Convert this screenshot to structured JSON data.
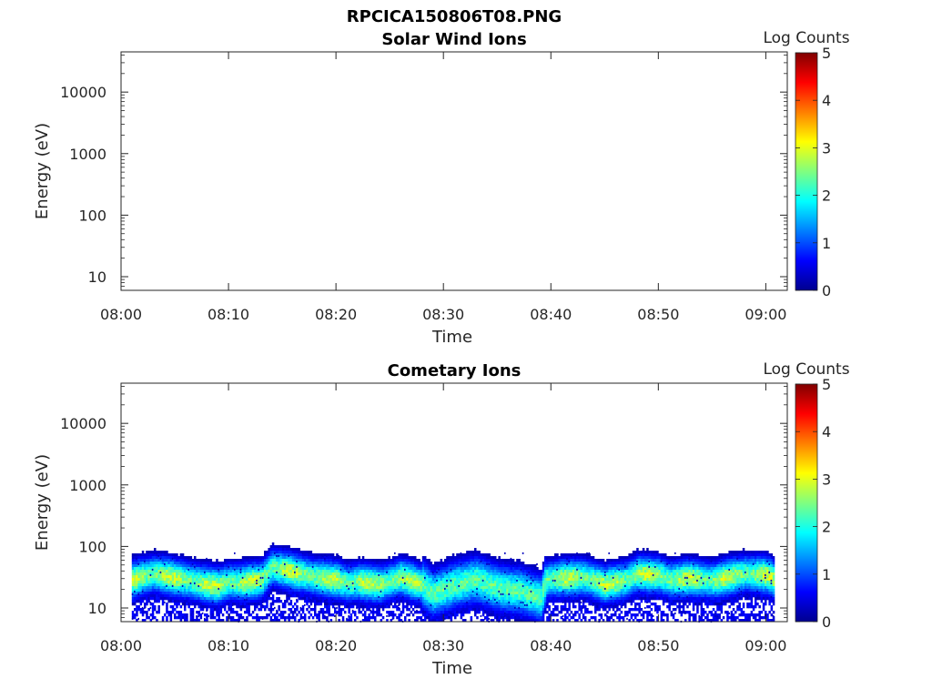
{
  "figure_title": "RPCICA150806T08.PNG",
  "chart_data": [
    {
      "type": "heatmap",
      "title": "Solar Wind Ions",
      "xlabel": "Time",
      "ylabel": "Energy (eV)",
      "x_ticks": [
        "08:00",
        "08:10",
        "08:20",
        "08:30",
        "08:40",
        "08:50",
        "09:00"
      ],
      "y_ticks": [
        "10",
        "100",
        "1000",
        "10000"
      ],
      "y_scale": "log",
      "ylim": [
        6,
        45000
      ],
      "xlim_minutes": [
        0,
        62
      ],
      "colorbar": {
        "label": "Log Counts",
        "ticks": [
          "0",
          "1",
          "2",
          "3",
          "4",
          "5"
        ],
        "range": [
          0,
          5
        ],
        "colormap": "jet"
      },
      "data": "empty"
    },
    {
      "type": "heatmap",
      "title": "Cometary Ions",
      "xlabel": "Time",
      "ylabel": "Energy (eV)",
      "x_ticks": [
        "08:00",
        "08:10",
        "08:20",
        "08:30",
        "08:40",
        "08:50",
        "09:00"
      ],
      "y_ticks": [
        "10",
        "100",
        "1000",
        "10000"
      ],
      "y_scale": "log",
      "ylim": [
        6,
        45000
      ],
      "xlim_minutes": [
        0,
        62
      ],
      "colorbar": {
        "label": "Log Counts",
        "ticks": [
          "0",
          "1",
          "2",
          "3",
          "4",
          "5"
        ],
        "range": [
          0,
          5
        ],
        "colormap": "jet"
      },
      "data_window_minutes": [
        1,
        60.8
      ],
      "sparse_counts_upper_energy_eV": 80,
      "band_center_eV": [
        [
          1,
          30
        ],
        [
          3,
          38
        ],
        [
          5,
          32
        ],
        [
          6,
          30
        ],
        [
          8,
          25
        ],
        [
          9,
          24
        ],
        [
          10,
          28
        ],
        [
          11,
          27
        ],
        [
          13,
          30
        ],
        [
          14,
          48
        ],
        [
          16,
          40
        ],
        [
          18,
          33
        ],
        [
          20,
          30
        ],
        [
          21,
          26
        ],
        [
          22,
          28
        ],
        [
          24,
          25
        ],
        [
          26,
          33
        ],
        [
          28,
          25
        ],
        [
          29,
          18
        ],
        [
          31,
          25
        ],
        [
          33,
          30
        ],
        [
          35,
          22
        ],
        [
          37,
          20
        ],
        [
          39,
          15
        ],
        [
          39.5,
          30
        ],
        [
          41,
          32
        ],
        [
          43,
          33
        ],
        [
          45,
          25
        ],
        [
          47,
          30
        ],
        [
          48,
          38
        ],
        [
          50,
          35
        ],
        [
          51,
          30
        ],
        [
          53,
          32
        ],
        [
          55,
          29
        ],
        [
          57,
          35
        ],
        [
          58,
          38
        ],
        [
          60,
          36
        ],
        [
          60.8,
          30
        ]
      ]
    }
  ]
}
